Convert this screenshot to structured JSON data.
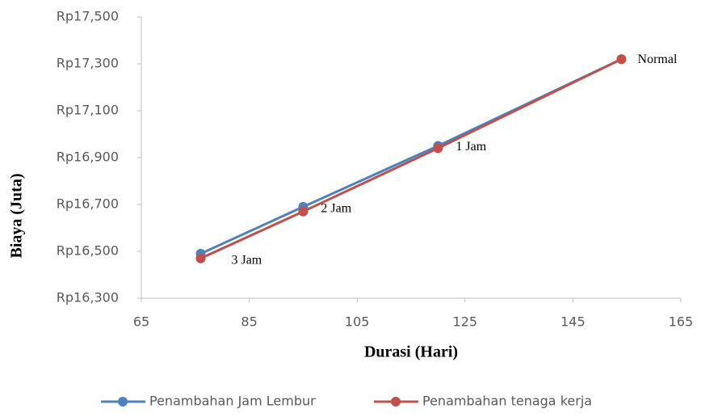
{
  "chart_data": {
    "type": "line",
    "xlabel": "Durasi (Hari)",
    "ylabel": "Biaya (Juta)",
    "x": [
      76,
      95,
      120,
      154
    ],
    "point_labels": [
      "3 Jam",
      "2 Jam",
      "1 Jam",
      "Normal"
    ],
    "series": [
      {
        "name": "Penambahan Jam Lembur",
        "color": "#4f81bd",
        "values": [
          16490,
          16690,
          16950,
          17320
        ]
      },
      {
        "name": "Penambahan tenaga kerja",
        "color": "#c0504d",
        "values": [
          16470,
          16670,
          16940,
          17320
        ]
      }
    ],
    "xlim": [
      65,
      165
    ],
    "xticks": [
      65,
      85,
      105,
      125,
      145,
      165
    ],
    "ylim": [
      16300,
      17500
    ],
    "yticks": [
      {
        "value": 16300,
        "label": "Rp16,300"
      },
      {
        "value": 16500,
        "label": "Rp16,500"
      },
      {
        "value": 16700,
        "label": "Rp16,700"
      },
      {
        "value": 16900,
        "label": "Rp16,900"
      },
      {
        "value": 17100,
        "label": "Rp17,100"
      },
      {
        "value": 17300,
        "label": "Rp17,300"
      },
      {
        "value": 17500,
        "label": "Rp17,500"
      }
    ],
    "legend": "bottom",
    "grid": false
  }
}
